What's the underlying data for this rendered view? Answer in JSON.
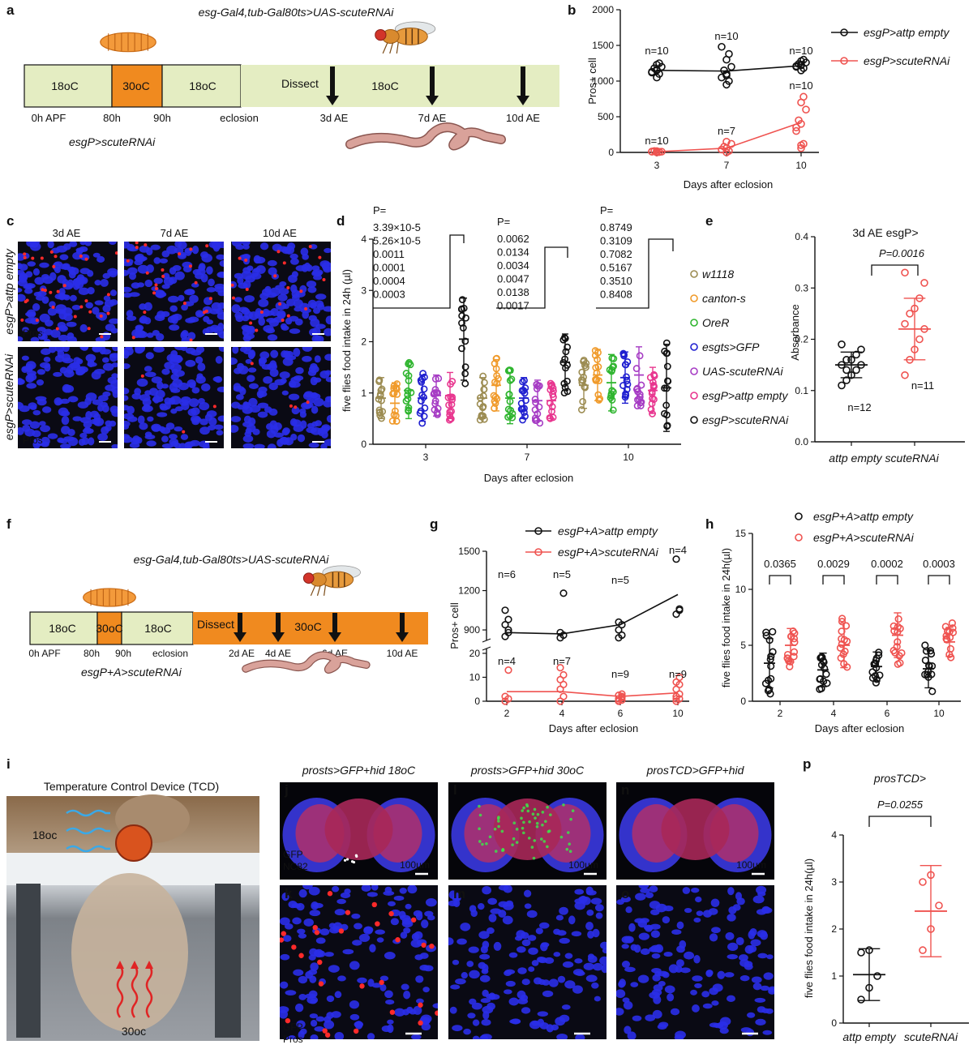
{
  "panels": {
    "a": {
      "letter": "a",
      "genotype": "esg-Gal4,tub-Gal80ts>UAS-scuteRNAi",
      "temps": [
        "18oC",
        "30oC",
        "18oC",
        "18oC"
      ],
      "dissect": "Dissect",
      "timepoints": [
        "0h APF",
        "80h",
        "90h",
        "eclosion",
        "3d AE",
        "7d AE",
        "10d AE"
      ],
      "label": "esgP>scuteRNAi",
      "colors": {
        "green_bar": "#e4edc2",
        "orange": "#f08a1f",
        "label": "#f08a1f"
      }
    },
    "b": {
      "letter": "b",
      "ylabel": "Pros+ cell",
      "xlabel": "Days after eclosion",
      "legend": [
        "esgP>attp empty",
        "esgP>scuteRNAi"
      ]
    },
    "c": {
      "letter": "c",
      "cols": [
        "3d AE",
        "7d AE",
        "10d AE"
      ],
      "rows": [
        "esgP>attp empty",
        "esgP>scuteRNAi"
      ],
      "stain": "Pros"
    },
    "d": {
      "letter": "d",
      "ylabel": "five flies food intake in 24h (µl)",
      "xlabel": "Days after eclosion",
      "p_header": "P=",
      "pvals": [
        [
          "3.39×10-5",
          "5.26×10-5",
          "0.0011",
          "0.0001",
          "0.0004",
          "0.0003"
        ],
        [
          "0.0062",
          "0.0134",
          "0.0034",
          "0.0047",
          "0.0138",
          "0.0017"
        ],
        [
          "0.8749",
          "0.3109",
          "0.7082",
          "0.5167",
          "0.3510",
          "0.8408"
        ]
      ],
      "legend": [
        "w1118",
        "canton-s",
        "OreR",
        "esgts>GFP",
        "UAS-scuteRNAi",
        "esgP>attp empty",
        "esgP>scuteRNAi"
      ]
    },
    "e": {
      "letter": "e",
      "title": "3d AE esgP>",
      "ylabel": "Absorbance",
      "pval": "P=0.0016",
      "n": [
        "n=12",
        "n=11"
      ],
      "xcats": [
        "attp empty",
        "scuteRNAi"
      ]
    },
    "f": {
      "letter": "f",
      "genotype": "esg-Gal4,tub-Gal80ts>UAS-scuteRNAi",
      "temps": [
        "18oC",
        "30oC",
        "18oC",
        "30oC"
      ],
      "dissect": "Dissect",
      "timepoints": [
        "0h APF",
        "80h",
        "90h",
        "eclosion",
        "2d AE",
        "4d AE",
        "6d AE",
        "10d AE"
      ],
      "label": "esgP+A>scuteRNAi"
    },
    "g": {
      "letter": "g",
      "ylabel": "Pros+ cell",
      "xlabel": "Days after eclosion",
      "legend": [
        "esgP+A>attp empty",
        "esgP+A>scuteRNAi"
      ]
    },
    "h": {
      "letter": "h",
      "ylabel": "five flies food intake in 24h(µl)",
      "xlabel": "Days after eclosion",
      "legend": [
        "esgP+A>attp empty",
        "esgP+A>scuteRNAi"
      ],
      "pvals": [
        "0.0365",
        "0.0029",
        "0.0002",
        "0.0003"
      ]
    },
    "i": {
      "letter": "i",
      "title": "Temperature Control Device (TCD)",
      "top_temp": "18oc",
      "bottom_temp": "30oc"
    },
    "jklmno": {
      "titles": [
        "prosts>GFP+hid 18oC",
        "prosts>GFP+hid 30oC",
        "prosTCD>GFP+hid"
      ],
      "letters_top": [
        "j",
        "l",
        "n"
      ],
      "letters_bottom": [
        "k",
        "m",
        "o"
      ],
      "scale": "100µm",
      "stain_top": [
        "GFP",
        "NC82"
      ],
      "stain_bottom": [
        "GFP",
        "Pros"
      ]
    },
    "p": {
      "letter": "p",
      "title": "prosTCD>",
      "ylabel": "five flies food intake in 24h(µl)",
      "pval": "P=0.0255",
      "xcats": [
        "attp empty",
        "scuteRNAi"
      ]
    }
  },
  "chart_data": [
    {
      "panel": "b",
      "type": "scatter",
      "x": [
        3,
        7,
        10
      ],
      "xlabel": "Days after eclosion",
      "ylabel": "Pros+ cell",
      "ylim": [
        0,
        2000
      ],
      "yticks": [
        0,
        500,
        1000,
        1500,
        2000
      ],
      "series": [
        {
          "name": "esgP>attp empty",
          "color": "#111111",
          "means": [
            1150,
            1140,
            1215
          ],
          "n": [
            "n=10",
            "n=10",
            "n=10"
          ],
          "points": [
            [
              1050,
              1100,
              1130,
              1150,
              1180,
              1200,
              1230,
              1250,
              1120,
              1160
            ],
            [
              950,
              1000,
              1050,
              1100,
              1150,
              1200,
              1300,
              1380,
              1480,
              1080
            ],
            [
              1150,
              1180,
              1200,
              1220,
              1240,
              1260,
              1280,
              1300,
              1210,
              1230
            ]
          ]
        },
        {
          "name": "esgP>scuteRNAi",
          "color": "#ef5350",
          "means": [
            10,
            60,
            420
          ],
          "n": [
            "n=10",
            "n=7",
            "n=10"
          ],
          "points": [
            [
              0,
              5,
              10,
              15,
              20,
              10,
              5,
              8,
              12,
              18
            ],
            [
              0,
              20,
              40,
              60,
              80,
              120,
              150
            ],
            [
              60,
              120,
              300,
              400,
              450,
              600,
              700,
              780,
              350,
              100
            ]
          ]
        }
      ]
    },
    {
      "panel": "d",
      "type": "scatter",
      "categories": [
        "3",
        "7",
        "10"
      ],
      "xlabel": "Days after eclosion",
      "ylabel": "five flies food intake in 24h (µl)",
      "ylim": [
        0,
        4
      ],
      "yticks": [
        0,
        1,
        2,
        3,
        4
      ],
      "series": [
        {
          "name": "w1118",
          "color": "#9c8c52",
          "means": [
            0.9,
            0.9,
            1.15
          ],
          "sd": [
            0.4,
            0.4,
            0.45
          ]
        },
        {
          "name": "canton-s",
          "color": "#f09a2a",
          "means": [
            0.8,
            1.15,
            1.35
          ],
          "sd": [
            0.4,
            0.5,
            0.5
          ]
        },
        {
          "name": "OreR",
          "color": "#2fb52f",
          "means": [
            1.05,
            0.9,
            1.2
          ],
          "sd": [
            0.55,
            0.5,
            0.55
          ]
        },
        {
          "name": "esgts>GFP",
          "color": "#2020d0",
          "means": [
            0.9,
            0.9,
            1.3
          ],
          "sd": [
            0.45,
            0.4,
            0.5
          ]
        },
        {
          "name": "UAS-scuteRNAi",
          "color": "#a63cc4",
          "means": [
            0.95,
            0.85,
            1.35
          ],
          "sd": [
            0.4,
            0.4,
            0.55
          ]
        },
        {
          "name": "esgP>attp empty",
          "color": "#e8368f",
          "means": [
            0.95,
            0.85,
            1.05
          ],
          "sd": [
            0.45,
            0.35,
            0.45
          ]
        },
        {
          "name": "esgP>scuteRNAi",
          "color": "#111111",
          "means": [
            2.05,
            1.6,
            1.1
          ],
          "sd": [
            0.8,
            0.55,
            0.85
          ]
        }
      ]
    },
    {
      "panel": "e",
      "type": "scatter",
      "categories": [
        "attp empty",
        "scuteRNAi"
      ],
      "ylabel": "Absorbance",
      "ylim": [
        0.0,
        0.4
      ],
      "yticks": [
        0.0,
        0.1,
        0.2,
        0.3,
        0.4
      ],
      "series": [
        {
          "name": "attp empty",
          "color": "#111111",
          "mean": 0.15,
          "sd": 0.025,
          "points": [
            0.11,
            0.12,
            0.13,
            0.14,
            0.15,
            0.15,
            0.16,
            0.16,
            0.17,
            0.18,
            0.19,
            0.14
          ]
        },
        {
          "name": "scuteRNAi",
          "color": "#ef5350",
          "mean": 0.22,
          "sd": 0.06,
          "points": [
            0.13,
            0.16,
            0.18,
            0.2,
            0.22,
            0.23,
            0.25,
            0.26,
            0.28,
            0.31,
            0.33
          ]
        }
      ]
    },
    {
      "panel": "g",
      "type": "scatter",
      "x": [
        2,
        4,
        6,
        10
      ],
      "xlabel": "Days after eclosion",
      "ylabel": "Pros+ cell",
      "yticks_top": [
        900,
        1200,
        1500
      ],
      "yticks_bottom": [
        0,
        10,
        20
      ],
      "series": [
        {
          "name": "esgP+A>attp empty",
          "color": "#111111",
          "means": [
            880,
            870,
            940,
            1170
          ],
          "n": [
            "n=6",
            "n=5",
            "n=5",
            "n=4"
          ]
        },
        {
          "name": "esgP+A>scuteRNAi",
          "color": "#ef5350",
          "means": [
            4,
            4,
            2,
            3.5
          ],
          "n": [
            "n=4",
            "n=7",
            "n=9",
            "n=9"
          ]
        }
      ]
    },
    {
      "panel": "h",
      "type": "scatter",
      "categories": [
        "2",
        "4",
        "6",
        "10"
      ],
      "xlabel": "Days after eclosion",
      "ylabel": "five flies food intake in 24h(µl)",
      "ylim": [
        0,
        15
      ],
      "yticks": [
        0,
        5,
        10,
        15
      ],
      "series": [
        {
          "name": "esgP+A>attp empty",
          "color": "#111111",
          "means": [
            3.4,
            2.8,
            3.1,
            2.9
          ],
          "sd": [
            2.2,
            1.5,
            1.3,
            1.7
          ]
        },
        {
          "name": "esgP+A>scuteRNAi",
          "color": "#ef5350",
          "means": [
            5.0,
            5.0,
            5.9,
            5.3
          ],
          "sd": [
            1.5,
            2.0,
            2.0,
            1.3
          ]
        }
      ]
    },
    {
      "panel": "p",
      "type": "scatter",
      "categories": [
        "attp empty",
        "scuteRNAi"
      ],
      "ylabel": "five flies food intake in 24h(µl)",
      "ylim": [
        0,
        4
      ],
      "yticks": [
        0,
        1,
        2,
        3,
        4
      ],
      "series": [
        {
          "name": "attp empty",
          "color": "#111111",
          "mean": 1.03,
          "sd": 0.55,
          "points": [
            0.5,
            0.75,
            1.0,
            1.5,
            1.55
          ]
        },
        {
          "name": "scuteRNAi",
          "color": "#ef5350",
          "mean": 2.38,
          "sd": 0.97,
          "points": [
            1.55,
            2.0,
            2.5,
            3.0,
            3.15
          ]
        }
      ]
    }
  ]
}
